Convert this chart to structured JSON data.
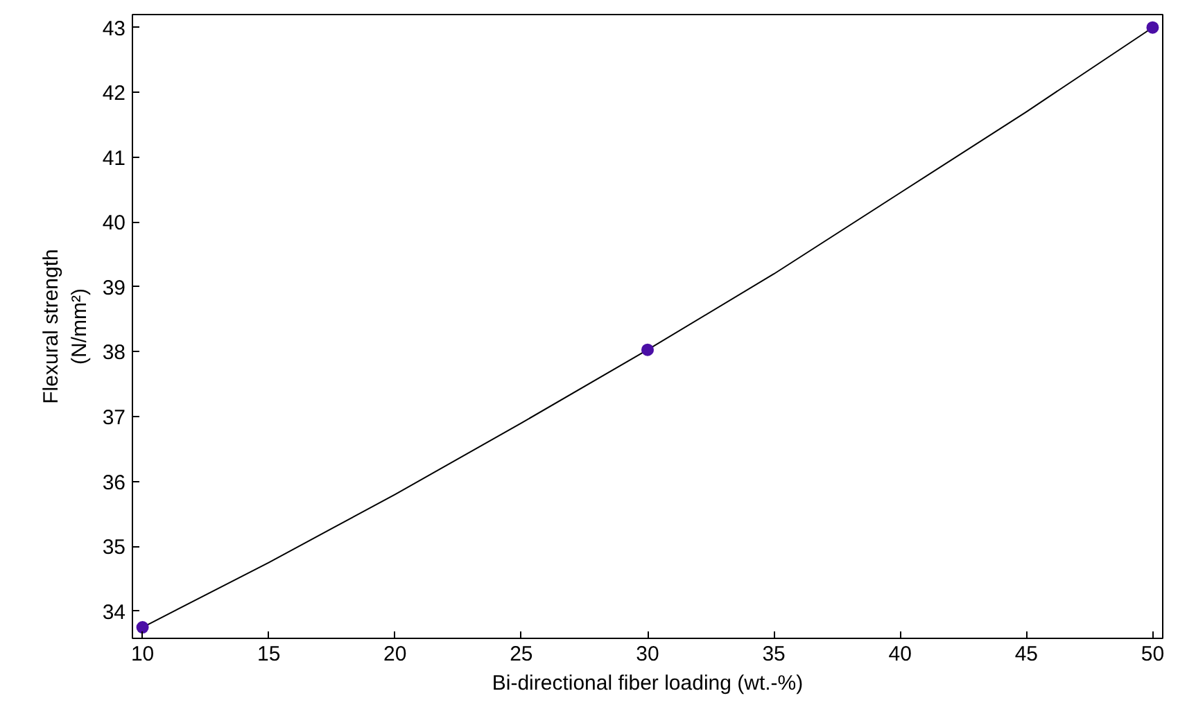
{
  "chart_data": {
    "type": "scatter",
    "xlabel": "Bi-directional fiber loading (wt.-%)",
    "ylabel": "Flexural strength\n(N/mm²)",
    "xlim": [
      9.6,
      50.4
    ],
    "ylim": [
      33.58,
      43.2
    ],
    "xticks": [
      10,
      15,
      20,
      25,
      30,
      35,
      40,
      45,
      50
    ],
    "yticks": [
      34,
      35,
      36,
      37,
      38,
      39,
      40,
      41,
      42,
      43
    ],
    "grid": false,
    "series": [
      {
        "type": "line",
        "color": "#000000",
        "line_style": "solid",
        "x": [
          10,
          15,
          20,
          25,
          30,
          35,
          40,
          45,
          50
        ],
        "values": [
          33.75,
          34.75,
          35.8,
          36.9,
          38.03,
          39.2,
          40.45,
          41.7,
          43.0
        ]
      },
      {
        "color": "#4b0fa6",
        "marker": "circle",
        "x": [
          10,
          30,
          50
        ],
        "values": [
          33.75,
          38.03,
          43.0
        ]
      }
    ]
  }
}
